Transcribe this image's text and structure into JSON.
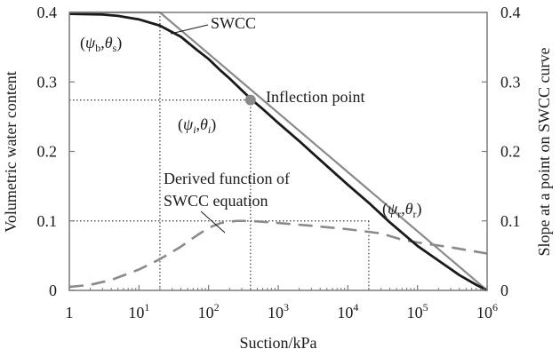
{
  "chart_data": {
    "type": "line",
    "xlabel": "Suction/kPa",
    "ylabel_left": "Volumetric water content",
    "ylabel_right": "Slope at a point on SWCC curve",
    "x_scale": "log",
    "xlim": [
      1,
      1000000
    ],
    "ylim_left": [
      0,
      0.4
    ],
    "ylim_right": [
      0,
      0.4
    ],
    "x_ticks": [
      {
        "value": 1,
        "base": "1",
        "exp": ""
      },
      {
        "value": 10,
        "base": "10",
        "exp": "1"
      },
      {
        "value": 100,
        "base": "10",
        "exp": "2"
      },
      {
        "value": 1000,
        "base": "10",
        "exp": "3"
      },
      {
        "value": 10000,
        "base": "10",
        "exp": "4"
      },
      {
        "value": 100000,
        "base": "10",
        "exp": "5"
      },
      {
        "value": 1000000,
        "base": "10",
        "exp": "6"
      }
    ],
    "y_ticks_left": [
      "0",
      "0.1",
      "0.2",
      "0.3",
      "0.4"
    ],
    "y_ticks_right": [
      "0",
      "0.1",
      "0.2",
      "0.3",
      "0.4"
    ],
    "grid": false,
    "series": [
      {
        "name": "SWCC",
        "color": "#1a1a1a",
        "style": "solid",
        "points": [
          [
            1,
            0.398
          ],
          [
            3,
            0.397
          ],
          [
            5,
            0.395
          ],
          [
            10,
            0.39
          ],
          [
            20,
            0.381
          ],
          [
            40,
            0.365
          ],
          [
            70,
            0.345
          ],
          [
            100,
            0.333
          ],
          [
            150,
            0.316
          ],
          [
            200,
            0.305
          ],
          [
            300,
            0.288
          ],
          [
            400,
            0.276
          ],
          [
            600,
            0.261
          ],
          [
            1000,
            0.241
          ],
          [
            2000,
            0.215
          ],
          [
            3000,
            0.199
          ],
          [
            5000,
            0.179
          ],
          [
            10000,
            0.152
          ],
          [
            20000,
            0.126
          ],
          [
            40000,
            0.098
          ],
          [
            60000,
            0.083
          ],
          [
            100000,
            0.064
          ],
          [
            200000,
            0.043
          ],
          [
            400000,
            0.022
          ],
          [
            700000,
            0.008
          ],
          [
            1000000,
            0.0
          ]
        ]
      },
      {
        "name": "Derived function of SWCC equation",
        "color": "#8a8a8a",
        "style": "dashed",
        "points": [
          [
            1,
            0.005
          ],
          [
            2,
            0.008
          ],
          [
            4,
            0.015
          ],
          [
            10,
            0.03
          ],
          [
            20,
            0.045
          ],
          [
            40,
            0.063
          ],
          [
            70,
            0.08
          ],
          [
            100,
            0.09
          ],
          [
            150,
            0.097
          ],
          [
            250,
            0.1
          ],
          [
            400,
            0.1
          ],
          [
            1000,
            0.097
          ],
          [
            3000,
            0.093
          ],
          [
            10000,
            0.088
          ],
          [
            30000,
            0.082
          ],
          [
            60000,
            0.073
          ],
          [
            100000,
            0.069
          ],
          [
            300000,
            0.062
          ],
          [
            1000000,
            0.053
          ]
        ]
      },
      {
        "name": "tangent",
        "color": "#8a8a8a",
        "style": "solid",
        "points": [
          [
            1,
            0.4
          ],
          [
            20,
            0.4
          ],
          [
            1000000,
            0.0
          ]
        ]
      }
    ],
    "guide_lines": [
      {
        "points": [
          [
            20,
            0.4
          ],
          [
            20,
            0.0
          ]
        ]
      },
      {
        "points": [
          [
            1,
            0.274
          ],
          [
            400,
            0.274
          ]
        ]
      },
      {
        "points": [
          [
            400,
            0.274
          ],
          [
            400,
            0.0
          ]
        ]
      },
      {
        "points": [
          [
            1,
            0.1
          ],
          [
            20000,
            0.1
          ]
        ]
      },
      {
        "points": [
          [
            20000,
            0.1
          ],
          [
            20000,
            0.0
          ]
        ]
      }
    ],
    "markers": [
      {
        "x": 400,
        "y": 0.274,
        "color": "#8a8a8a"
      }
    ],
    "annotations": [
      {
        "text": "SWCC"
      },
      {
        "text": "Inflection point"
      },
      {
        "text": "Derived function of"
      },
      {
        "text": "SWCC equation"
      }
    ],
    "points_labels": [
      {
        "psi": "ψ",
        "psi_sub": "b",
        "theta": "θ",
        "theta_sub": "s"
      },
      {
        "psi": "ψ",
        "psi_sub": "i",
        "theta": "θ",
        "theta_sub": "i"
      },
      {
        "psi": "ψ",
        "psi_sub": "r",
        "theta": "θ",
        "theta_sub": "r"
      }
    ]
  }
}
